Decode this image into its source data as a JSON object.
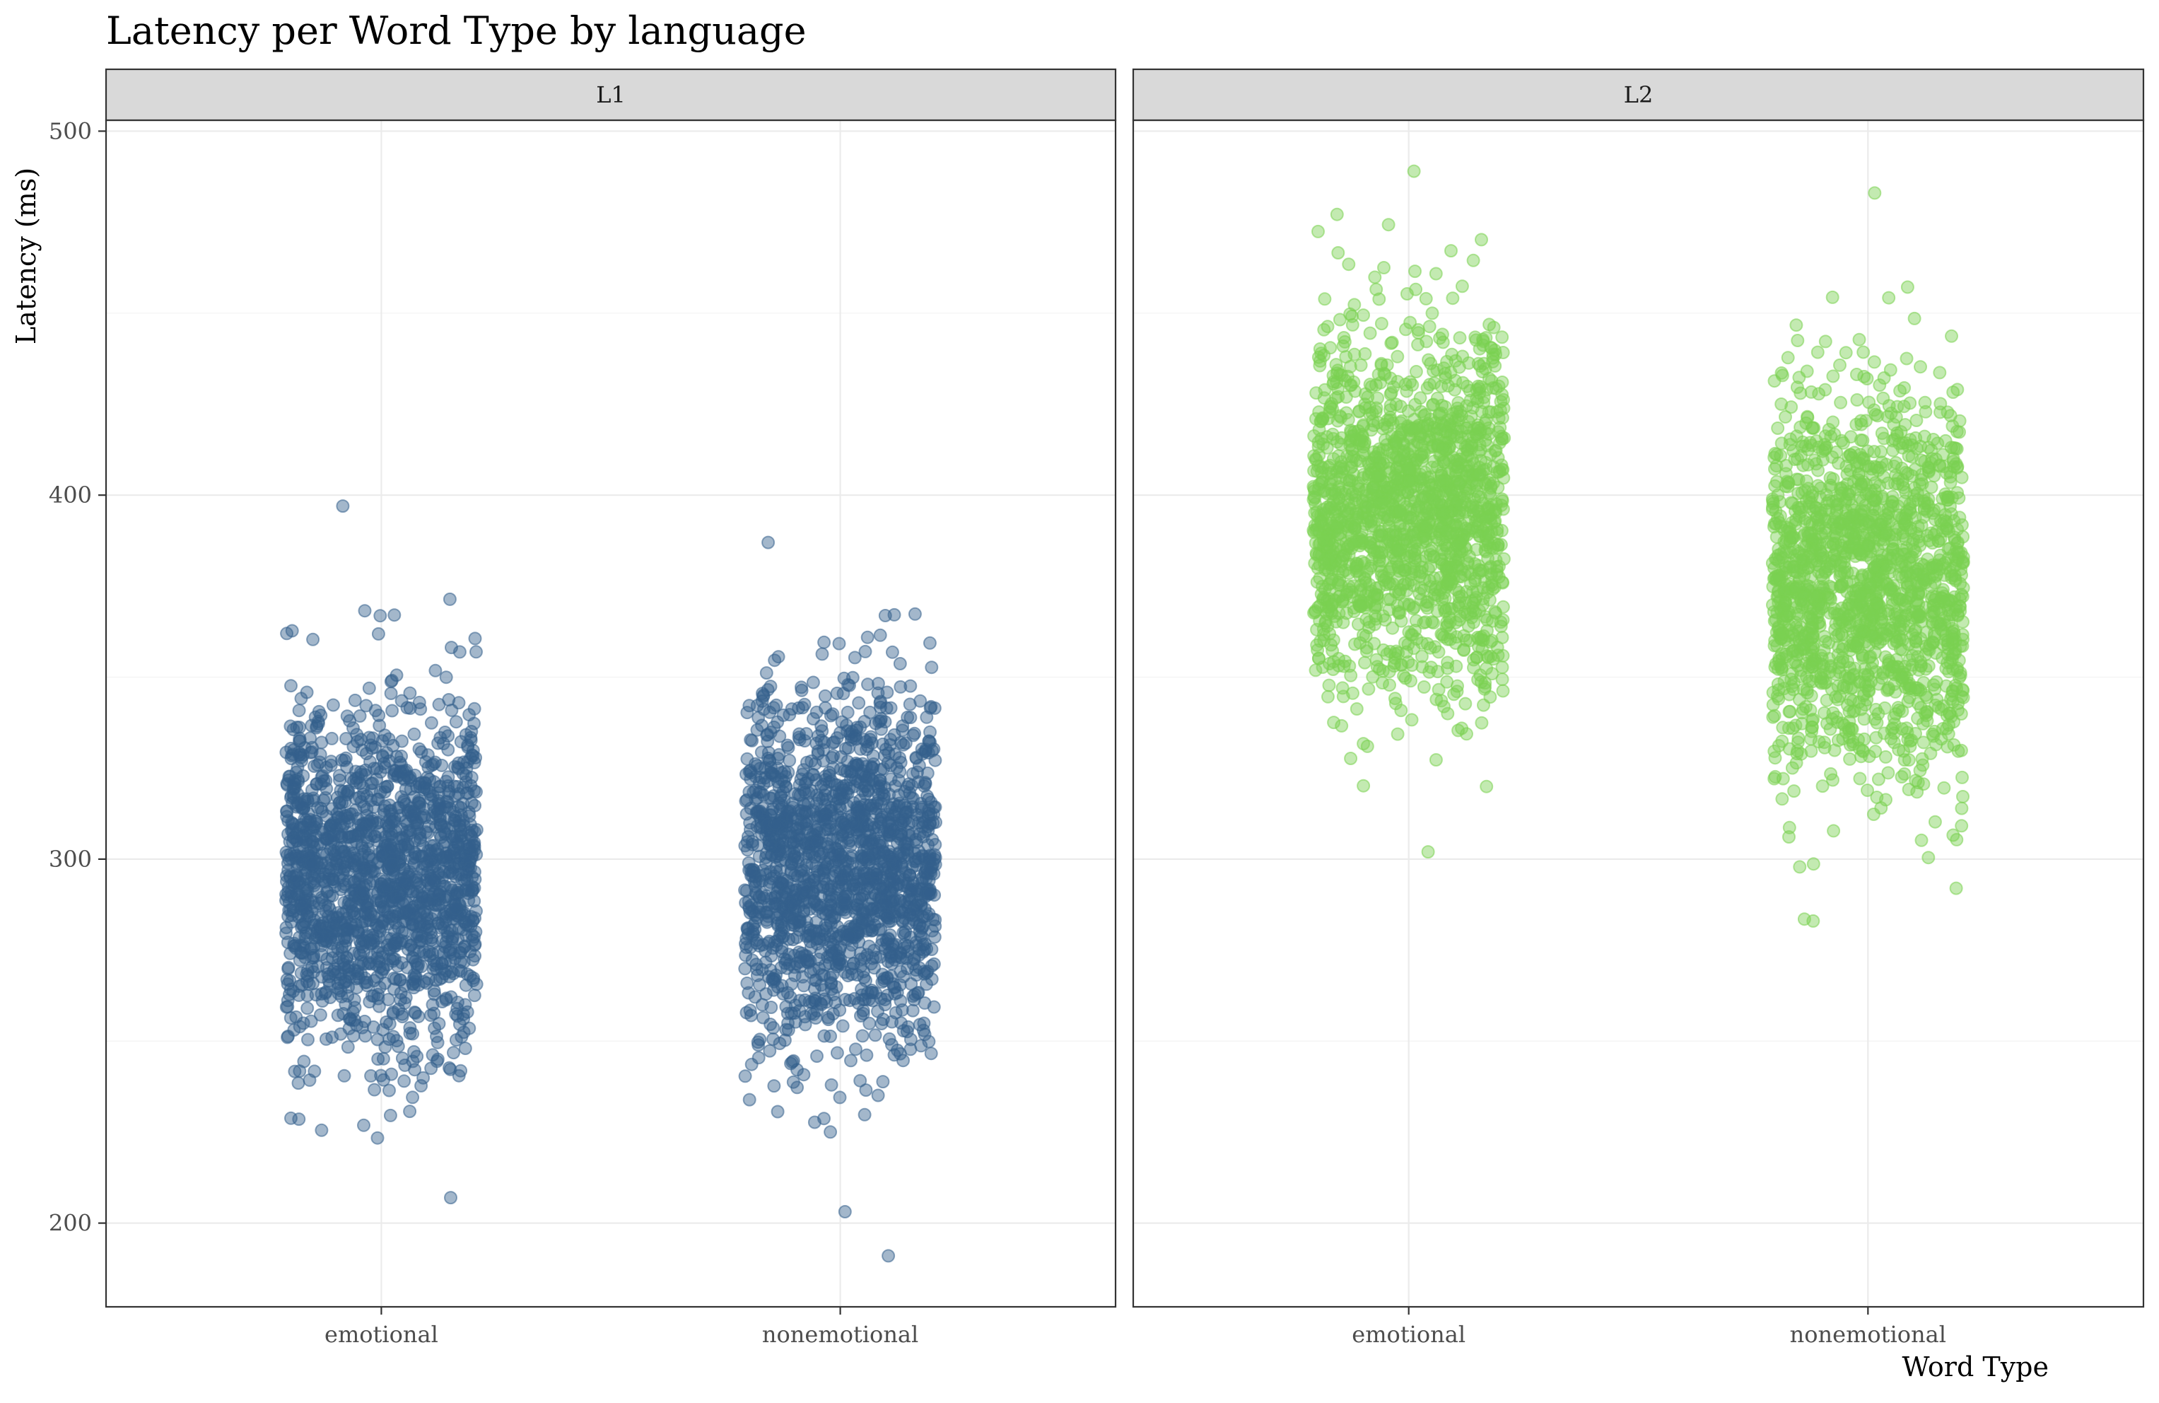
{
  "chart_data": {
    "type": "scatter",
    "title": "Latency per Word Type by language",
    "xlabel": "Word Type",
    "ylabel": "Latency (ms)",
    "ylim": [
      177,
      503
    ],
    "y_ticks": [
      200,
      300,
      400,
      500
    ],
    "categories": [
      "emotional",
      "nonemotional"
    ],
    "grid": true,
    "legend": "none",
    "panels": [
      {
        "label": "L1",
        "color": "#34608c",
        "series": [
          {
            "category": "emotional",
            "center": 296,
            "bulk_range": [
              247,
              352
            ],
            "min": 207,
            "max": 397
          },
          {
            "category": "nonemotional",
            "center": 298,
            "bulk_range": [
              246,
              355
            ],
            "min": 191,
            "max": 387
          }
        ]
      },
      {
        "label": "L2",
        "color": "#7ad151",
        "series": [
          {
            "category": "emotional",
            "center": 395,
            "bulk_range": [
              340,
              452
            ],
            "min": 302,
            "max": 489
          },
          {
            "category": "nonemotional",
            "center": 376,
            "bulk_range": [
              318,
              437
            ],
            "min": 283,
            "max": 483
          }
        ]
      }
    ]
  }
}
